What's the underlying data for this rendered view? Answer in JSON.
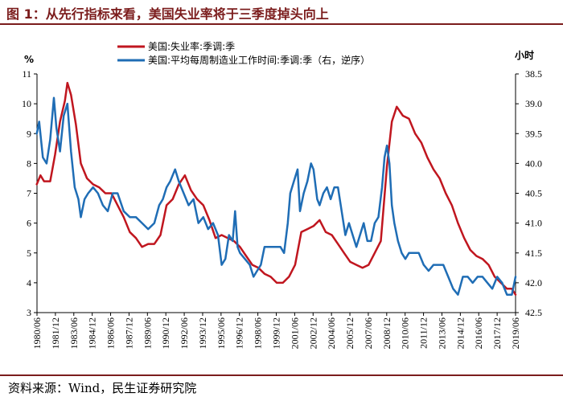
{
  "header": {
    "title": "图 1：从先行指标来看，美国失业率将于三季度掉头向上"
  },
  "footer": {
    "source": "资料来源：Wind，民生证券研究院"
  },
  "colors": {
    "unemployment": "#c0161f",
    "hours": "#1f6db5",
    "brand": "#7b1c1c"
  },
  "chart_data": {
    "type": "line",
    "title": "",
    "xlabel": "",
    "left_axis": {
      "unit": "%",
      "min": 3,
      "max": 11,
      "ticks": [
        3,
        4,
        5,
        6,
        7,
        8,
        9,
        10,
        11
      ]
    },
    "right_axis": {
      "unit": "小时",
      "min": 38.5,
      "max": 42.5,
      "inverted": true,
      "ticks": [
        "38.5",
        "39.0",
        "39.5",
        "40.0",
        "40.5",
        "41.0",
        "41.5",
        "42.0",
        "42.5"
      ]
    },
    "x_ticks": [
      "1980/06",
      "1981/12",
      "1983/06",
      "1984/12",
      "1986/06",
      "1987/12",
      "1989/06",
      "1990/12",
      "1992/06",
      "1993/12",
      "1995/06",
      "1996/12",
      "1998/06",
      "1999/12",
      "2001/06",
      "2002/12",
      "2004/06",
      "2005/12",
      "2007/06",
      "2008/12",
      "2010/06",
      "2011/12",
      "2013/06",
      "2014/12",
      "2016/06",
      "2017/12",
      "2019/06"
    ],
    "x_range": [
      1980.42,
      2019.5
    ],
    "legend_position": "top-left",
    "grid": false,
    "series": [
      {
        "name": "美国:失业率:季调:季",
        "axis": "left",
        "x": [
          1980.4,
          1980.7,
          1981.0,
          1981.5,
          1981.9,
          1982.3,
          1982.7,
          1982.9,
          1983.2,
          1983.6,
          1984.0,
          1984.5,
          1985.0,
          1985.5,
          1986.0,
          1986.5,
          1987.0,
          1987.5,
          1988.0,
          1988.5,
          1989.0,
          1989.5,
          1990.0,
          1990.5,
          1991.0,
          1991.5,
          1992.0,
          1992.5,
          1993.0,
          1993.5,
          1994.0,
          1994.5,
          1995.0,
          1995.5,
          1996.0,
          1996.5,
          1997.0,
          1997.5,
          1998.0,
          1998.5,
          1999.0,
          1999.5,
          2000.0,
          2000.5,
          2001.0,
          2001.5,
          2002.0,
          2002.5,
          2003.0,
          2003.5,
          2004.0,
          2004.5,
          2005.0,
          2005.5,
          2006.0,
          2006.5,
          2007.0,
          2007.5,
          2008.0,
          2008.5,
          2009.0,
          2009.4,
          2009.8,
          2010.3,
          2010.8,
          2011.3,
          2011.8,
          2012.3,
          2012.8,
          2013.3,
          2013.8,
          2014.3,
          2014.8,
          2015.3,
          2015.8,
          2016.3,
          2016.8,
          2017.3,
          2017.8,
          2018.3,
          2018.8,
          2019.2,
          2019.5
        ],
        "values": [
          7.3,
          7.6,
          7.4,
          7.4,
          8.3,
          9.4,
          10.1,
          10.7,
          10.3,
          9.3,
          8.0,
          7.5,
          7.3,
          7.2,
          7.0,
          7.0,
          6.6,
          6.2,
          5.7,
          5.5,
          5.2,
          5.3,
          5.3,
          5.6,
          6.6,
          6.8,
          7.3,
          7.6,
          7.1,
          6.8,
          6.6,
          6.1,
          5.5,
          5.6,
          5.5,
          5.4,
          5.2,
          4.9,
          4.6,
          4.5,
          4.3,
          4.2,
          4.0,
          4.0,
          4.2,
          4.6,
          5.7,
          5.8,
          5.9,
          6.1,
          5.7,
          5.6,
          5.3,
          5.0,
          4.7,
          4.6,
          4.5,
          4.6,
          5.0,
          5.4,
          7.9,
          9.4,
          9.9,
          9.6,
          9.5,
          9.0,
          8.7,
          8.2,
          7.8,
          7.5,
          7.0,
          6.6,
          6.0,
          5.5,
          5.1,
          4.9,
          4.8,
          4.6,
          4.2,
          4.0,
          3.8,
          3.8,
          3.6
        ]
      },
      {
        "name": "美国:平均每周制造业工作时间:季调:季（右，逆序）",
        "axis": "right",
        "x": [
          1980.4,
          1980.6,
          1980.9,
          1981.2,
          1981.5,
          1981.8,
          1982.0,
          1982.3,
          1982.6,
          1982.9,
          1983.2,
          1983.5,
          1983.8,
          1984.0,
          1984.3,
          1984.6,
          1985.0,
          1985.4,
          1985.8,
          1986.2,
          1986.6,
          1987.0,
          1987.5,
          1988.0,
          1988.5,
          1989.0,
          1989.5,
          1990.0,
          1990.4,
          1990.7,
          1991.0,
          1991.3,
          1991.7,
          1992.0,
          1992.4,
          1992.8,
          1993.2,
          1993.6,
          1994.0,
          1994.4,
          1994.8,
          1995.2,
          1995.5,
          1995.8,
          1996.1,
          1996.4,
          1996.6,
          1996.8,
          1997.0,
          1997.4,
          1997.8,
          1998.1,
          1998.4,
          1998.7,
          1999.0,
          1999.3,
          1999.6,
          2000.0,
          2000.3,
          2000.6,
          2000.9,
          2001.1,
          2001.4,
          2001.7,
          2001.9,
          2002.2,
          2002.5,
          2002.8,
          2003.0,
          2003.3,
          2003.5,
          2003.8,
          2004.1,
          2004.4,
          2004.7,
          2005.0,
          2005.3,
          2005.6,
          2005.9,
          2006.2,
          2006.5,
          2006.8,
          2007.1,
          2007.4,
          2007.7,
          2008.0,
          2008.3,
          2008.6,
          2008.8,
          2009.0,
          2009.2,
          2009.4,
          2009.6,
          2009.9,
          2010.2,
          2010.5,
          2010.8,
          2011.2,
          2011.6,
          2012.0,
          2012.4,
          2012.8,
          2013.2,
          2013.6,
          2014.0,
          2014.4,
          2014.8,
          2015.2,
          2015.6,
          2016.0,
          2016.4,
          2016.8,
          2017.2,
          2017.6,
          2018.0,
          2018.4,
          2018.8,
          2019.2,
          2019.5
        ],
        "values": [
          39.5,
          39.3,
          39.9,
          40.0,
          39.6,
          38.9,
          39.4,
          39.8,
          39.2,
          39.0,
          39.8,
          40.4,
          40.6,
          40.9,
          40.6,
          40.5,
          40.4,
          40.5,
          40.7,
          40.8,
          40.5,
          40.5,
          40.8,
          40.9,
          40.9,
          41.0,
          41.1,
          41.0,
          40.7,
          40.6,
          40.4,
          40.3,
          40.1,
          40.3,
          40.5,
          40.7,
          40.6,
          41.0,
          40.9,
          41.1,
          41.0,
          41.2,
          41.7,
          41.6,
          41.2,
          41.3,
          40.8,
          41.4,
          41.5,
          41.6,
          41.7,
          41.9,
          41.8,
          41.7,
          41.4,
          41.4,
          41.4,
          41.4,
          41.4,
          41.5,
          41.0,
          40.5,
          40.3,
          40.1,
          40.8,
          40.5,
          40.3,
          40.0,
          40.1,
          40.6,
          40.7,
          40.5,
          40.4,
          40.6,
          40.4,
          40.4,
          40.8,
          41.2,
          41.0,
          41.2,
          41.4,
          41.2,
          41.0,
          41.3,
          41.3,
          41.0,
          40.9,
          40.4,
          39.9,
          39.7,
          40.0,
          40.7,
          41.0,
          41.3,
          41.5,
          41.6,
          41.5,
          41.5,
          41.5,
          41.7,
          41.8,
          41.7,
          41.7,
          41.7,
          41.9,
          42.1,
          42.2,
          41.9,
          41.9,
          42.0,
          41.9,
          41.9,
          42.0,
          42.1,
          41.9,
          42.0,
          42.2,
          42.2,
          41.9
        ]
      }
    ]
  }
}
